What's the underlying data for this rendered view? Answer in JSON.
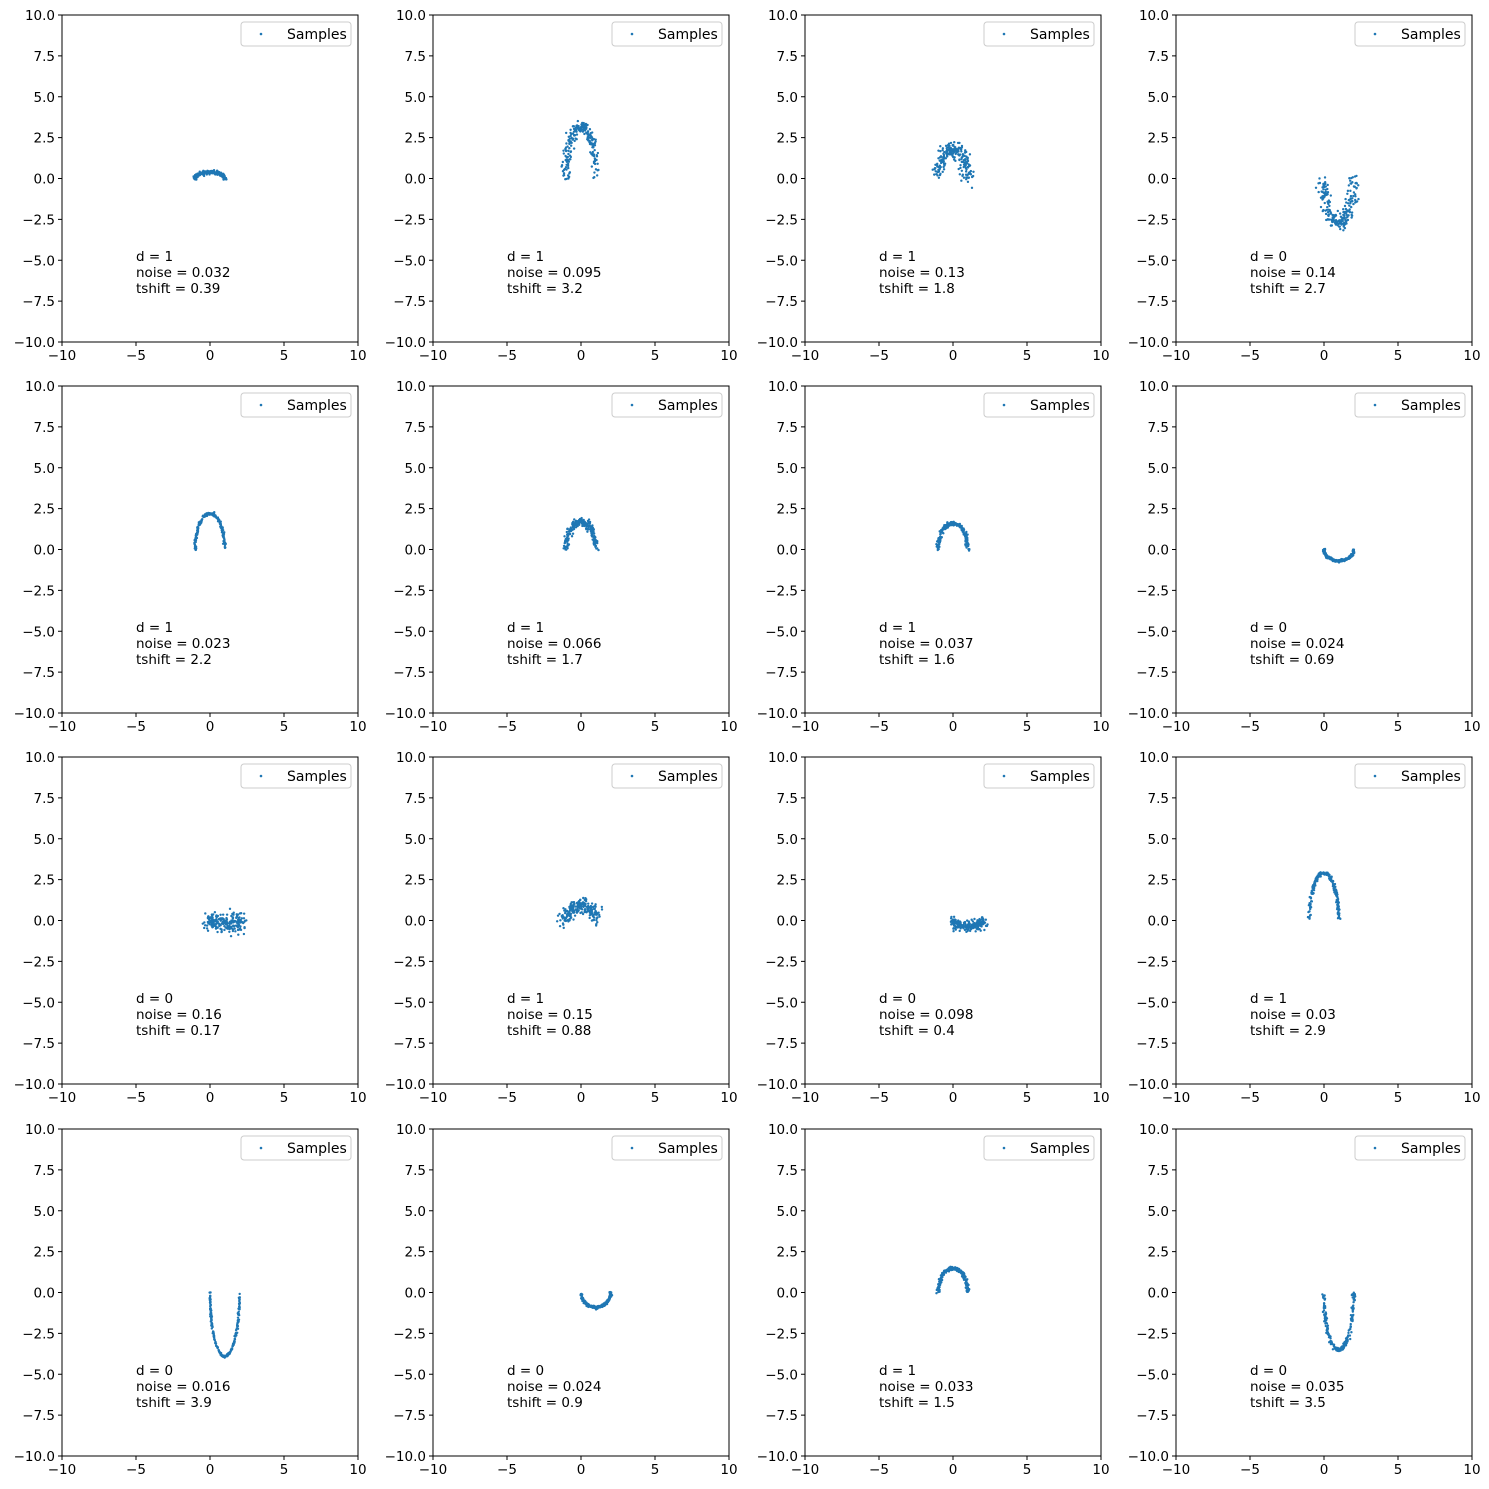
{
  "colors": {
    "samples": "#1f77b4",
    "axes": "#000000",
    "legend_border": "#cccccc",
    "background": "#ffffff"
  },
  "chart_data": [
    {
      "type": "scatter",
      "shape": "arch-up",
      "legend": "Samples",
      "xlim": [
        -10,
        10
      ],
      "ylim": [
        -10,
        10
      ],
      "xticks": [
        "−10",
        "−5",
        "0",
        "5",
        "10"
      ],
      "yticks": [
        "10.0",
        "7.5",
        "5.0",
        "2.5",
        "0.0",
        "−2.5",
        "−5.0",
        "−7.5",
        "−10.0"
      ],
      "d": 1,
      "noise": 0.032,
      "tshift": 0.39,
      "annotation": [
        "d = 1",
        "noise = 0.032",
        "tshift = 0.39"
      ]
    },
    {
      "type": "scatter",
      "shape": "arch-up",
      "legend": "Samples",
      "xlim": [
        -10,
        10
      ],
      "ylim": [
        -10,
        10
      ],
      "xticks": [
        "−10",
        "−5",
        "0",
        "5",
        "10"
      ],
      "yticks": [
        "10.0",
        "7.5",
        "5.0",
        "2.5",
        "0.0",
        "−2.5",
        "−5.0",
        "−7.5",
        "−10.0"
      ],
      "d": 1,
      "noise": 0.095,
      "tshift": 3.2,
      "annotation": [
        "d = 1",
        "noise = 0.095",
        "tshift = 3.2"
      ]
    },
    {
      "type": "scatter",
      "shape": "arch-up",
      "legend": "Samples",
      "xlim": [
        -10,
        10
      ],
      "ylim": [
        -10,
        10
      ],
      "xticks": [
        "−10",
        "−5",
        "0",
        "5",
        "10"
      ],
      "yticks": [
        "10.0",
        "7.5",
        "5.0",
        "2.5",
        "0.0",
        "−2.5",
        "−5.0",
        "−7.5",
        "−10.0"
      ],
      "d": 1,
      "noise": 0.13,
      "tshift": 1.8,
      "annotation": [
        "d = 1",
        "noise = 0.13",
        "tshift = 1.8"
      ]
    },
    {
      "type": "scatter",
      "shape": "cup-down",
      "legend": "Samples",
      "xlim": [
        -10,
        10
      ],
      "ylim": [
        -10,
        10
      ],
      "xticks": [
        "−10",
        "−5",
        "0",
        "5",
        "10"
      ],
      "yticks": [
        "10.0",
        "7.5",
        "5.0",
        "2.5",
        "0.0",
        "−2.5",
        "−5.0",
        "−7.5",
        "−10.0"
      ],
      "d": 0,
      "noise": 0.14,
      "tshift": 2.7,
      "annotation": [
        "d = 0",
        "noise = 0.14",
        "tshift = 2.7"
      ]
    },
    {
      "type": "scatter",
      "shape": "arch-up",
      "legend": "Samples",
      "xlim": [
        -10,
        10
      ],
      "ylim": [
        -10,
        10
      ],
      "xticks": [
        "−10",
        "−5",
        "0",
        "5",
        "10"
      ],
      "yticks": [
        "10.0",
        "7.5",
        "5.0",
        "2.5",
        "0.0",
        "−2.5",
        "−5.0",
        "−7.5",
        "−10.0"
      ],
      "d": 1,
      "noise": 0.023,
      "tshift": 2.2,
      "annotation": [
        "d = 1",
        "noise = 0.023",
        "tshift = 2.2"
      ]
    },
    {
      "type": "scatter",
      "shape": "arch-up",
      "legend": "Samples",
      "xlim": [
        -10,
        10
      ],
      "ylim": [
        -10,
        10
      ],
      "xticks": [
        "−10",
        "−5",
        "0",
        "5",
        "10"
      ],
      "yticks": [
        "10.0",
        "7.5",
        "5.0",
        "2.5",
        "0.0",
        "−2.5",
        "−5.0",
        "−7.5",
        "−10.0"
      ],
      "d": 1,
      "noise": 0.066,
      "tshift": 1.7,
      "annotation": [
        "d = 1",
        "noise = 0.066",
        "tshift = 1.7"
      ]
    },
    {
      "type": "scatter",
      "shape": "arch-up",
      "legend": "Samples",
      "xlim": [
        -10,
        10
      ],
      "ylim": [
        -10,
        10
      ],
      "xticks": [
        "−10",
        "−5",
        "0",
        "5",
        "10"
      ],
      "yticks": [
        "10.0",
        "7.5",
        "5.0",
        "2.5",
        "0.0",
        "−2.5",
        "−5.0",
        "−7.5",
        "−10.0"
      ],
      "d": 1,
      "noise": 0.037,
      "tshift": 1.6,
      "annotation": [
        "d = 1",
        "noise = 0.037",
        "tshift = 1.6"
      ]
    },
    {
      "type": "scatter",
      "shape": "cup-down",
      "legend": "Samples",
      "xlim": [
        -10,
        10
      ],
      "ylim": [
        -10,
        10
      ],
      "xticks": [
        "−10",
        "−5",
        "0",
        "5",
        "10"
      ],
      "yticks": [
        "10.0",
        "7.5",
        "5.0",
        "2.5",
        "0.0",
        "−2.5",
        "−5.0",
        "−7.5",
        "−10.0"
      ],
      "d": 0,
      "noise": 0.024,
      "tshift": 0.69,
      "annotation": [
        "d = 0",
        "noise = 0.024",
        "tshift = 0.69"
      ]
    },
    {
      "type": "scatter",
      "shape": "cup-down",
      "legend": "Samples",
      "xlim": [
        -10,
        10
      ],
      "ylim": [
        -10,
        10
      ],
      "xticks": [
        "−10",
        "−5",
        "0",
        "5",
        "10"
      ],
      "yticks": [
        "10.0",
        "7.5",
        "5.0",
        "2.5",
        "0.0",
        "−2.5",
        "−5.0",
        "−7.5",
        "−10.0"
      ],
      "d": 0,
      "noise": 0.16,
      "tshift": 0.17,
      "annotation": [
        "d = 0",
        "noise = 0.16",
        "tshift = 0.17"
      ]
    },
    {
      "type": "scatter",
      "shape": "arch-up",
      "legend": "Samples",
      "xlim": [
        -10,
        10
      ],
      "ylim": [
        -10,
        10
      ],
      "xticks": [
        "−10",
        "−5",
        "0",
        "5",
        "10"
      ],
      "yticks": [
        "10.0",
        "7.5",
        "5.0",
        "2.5",
        "0.0",
        "−2.5",
        "−5.0",
        "−7.5",
        "−10.0"
      ],
      "d": 1,
      "noise": 0.15,
      "tshift": 0.88,
      "annotation": [
        "d = 1",
        "noise = 0.15",
        "tshift = 0.88"
      ]
    },
    {
      "type": "scatter",
      "shape": "cup-down",
      "legend": "Samples",
      "xlim": [
        -10,
        10
      ],
      "ylim": [
        -10,
        10
      ],
      "xticks": [
        "−10",
        "−5",
        "0",
        "5",
        "10"
      ],
      "yticks": [
        "10.0",
        "7.5",
        "5.0",
        "2.5",
        "0.0",
        "−2.5",
        "−5.0",
        "−7.5",
        "−10.0"
      ],
      "d": 0,
      "noise": 0.098,
      "tshift": 0.4,
      "annotation": [
        "d = 0",
        "noise = 0.098",
        "tshift = 0.4"
      ]
    },
    {
      "type": "scatter",
      "shape": "arch-up",
      "legend": "Samples",
      "xlim": [
        -10,
        10
      ],
      "ylim": [
        -10,
        10
      ],
      "xticks": [
        "−10",
        "−5",
        "0",
        "5",
        "10"
      ],
      "yticks": [
        "10.0",
        "7.5",
        "5.0",
        "2.5",
        "0.0",
        "−2.5",
        "−5.0",
        "−7.5",
        "−10.0"
      ],
      "d": 1,
      "noise": 0.03,
      "tshift": 2.9,
      "annotation": [
        "d = 1",
        "noise = 0.03",
        "tshift = 2.9"
      ]
    },
    {
      "type": "scatter",
      "shape": "cup-down",
      "legend": "Samples",
      "xlim": [
        -10,
        10
      ],
      "ylim": [
        -10,
        10
      ],
      "xticks": [
        "−10",
        "−5",
        "0",
        "5",
        "10"
      ],
      "yticks": [
        "10.0",
        "7.5",
        "5.0",
        "2.5",
        "0.0",
        "−2.5",
        "−5.0",
        "−7.5",
        "−10.0"
      ],
      "d": 0,
      "noise": 0.016,
      "tshift": 3.9,
      "annotation": [
        "d = 0",
        "noise = 0.016",
        "tshift = 3.9"
      ]
    },
    {
      "type": "scatter",
      "shape": "cup-down",
      "legend": "Samples",
      "xlim": [
        -10,
        10
      ],
      "ylim": [
        -10,
        10
      ],
      "xticks": [
        "−10",
        "−5",
        "0",
        "5",
        "10"
      ],
      "yticks": [
        "10.0",
        "7.5",
        "5.0",
        "2.5",
        "0.0",
        "−2.5",
        "−5.0",
        "−7.5",
        "−10.0"
      ],
      "d": 0,
      "noise": 0.024,
      "tshift": 0.9,
      "annotation": [
        "d = 0",
        "noise = 0.024",
        "tshift = 0.9"
      ]
    },
    {
      "type": "scatter",
      "shape": "arch-up",
      "legend": "Samples",
      "xlim": [
        -10,
        10
      ],
      "ylim": [
        -10,
        10
      ],
      "xticks": [
        "−10",
        "−5",
        "0",
        "5",
        "10"
      ],
      "yticks": [
        "10.0",
        "7.5",
        "5.0",
        "2.5",
        "0.0",
        "−2.5",
        "−5.0",
        "−7.5",
        "−10.0"
      ],
      "d": 1,
      "noise": 0.033,
      "tshift": 1.5,
      "annotation": [
        "d = 1",
        "noise = 0.033",
        "tshift = 1.5"
      ]
    },
    {
      "type": "scatter",
      "shape": "cup-down",
      "legend": "Samples",
      "xlim": [
        -10,
        10
      ],
      "ylim": [
        -10,
        10
      ],
      "xticks": [
        "−10",
        "−5",
        "0",
        "5",
        "10"
      ],
      "yticks": [
        "10.0",
        "7.5",
        "5.0",
        "2.5",
        "0.0",
        "−2.5",
        "−5.0",
        "−7.5",
        "−10.0"
      ],
      "d": 0,
      "noise": 0.035,
      "tshift": 3.5,
      "annotation": [
        "d = 0",
        "noise = 0.035",
        "tshift = 3.5"
      ]
    }
  ]
}
